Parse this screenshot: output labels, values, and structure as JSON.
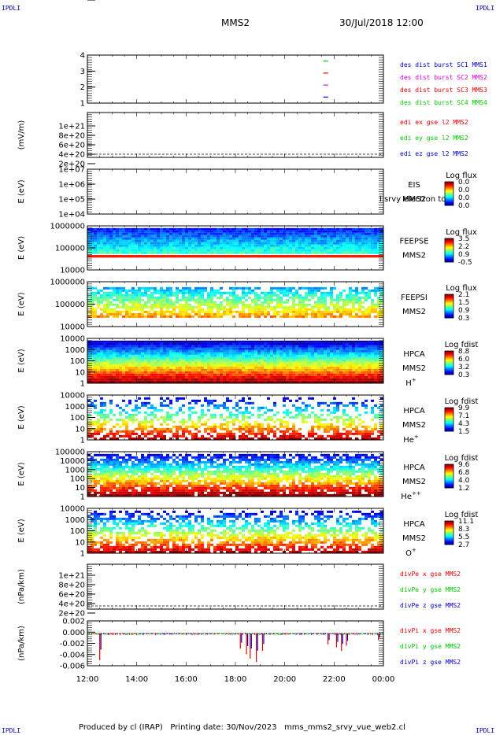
{
  "corners": {
    "tl": "IPDLI",
    "tr": "IPDLI",
    "bl": "IPDLI",
    "br": "IPDLI"
  },
  "header": {
    "spacecraft": "MMS2",
    "datetime": "30/Jul/2018 12:00"
  },
  "footer": {
    "produced_by": "Produced by cl (IRAP)",
    "printing_date": "Printing date: 30/Nov/2023",
    "filename": "mms_mms2_srvy_vue_web2.cl"
  },
  "colors": {
    "blue": "#0000c8",
    "magenta": "#e000e0",
    "red": "#e00000",
    "green": "#00c800"
  },
  "chart_data": {
    "type": "heatmap",
    "x_ticks": [
      "12:00",
      "14:00",
      "16:00",
      "18:00",
      "20:00",
      "22:00",
      "00:00"
    ],
    "panels": [
      {
        "type": "scatter",
        "y_ticks": [
          "4",
          "3",
          "2",
          "1"
        ],
        "ylim": [
          0.5,
          4.5
        ],
        "legend": [
          {
            "label": "des dist burst SC1 MMS1",
            "color": "#0000c8"
          },
          {
            "label": "des dist burst SC2 MMS2",
            "color": "#e000e0"
          },
          {
            "label": "des dist burst SC3 MMS3",
            "color": "#e00000"
          },
          {
            "label": "des dist burst SC4 MMS4",
            "color": "#00c800"
          }
        ],
        "marks": [
          {
            "x": 21.66,
            "y": 4,
            "color": "#00c800"
          },
          {
            "x": 21.66,
            "y": 3,
            "color": "#e00000"
          },
          {
            "x": 21.66,
            "y": 2,
            "color": "#e000e0"
          },
          {
            "x": 21.66,
            "y": 1,
            "color": "#0000c8"
          }
        ]
      },
      {
        "type": "line",
        "ylabel": "(mV/m)",
        "y_ticks": [
          "1e+21",
          "8e+20",
          "6e+20",
          "4e+20",
          "2e+20",
          "0"
        ],
        "legend": [
          {
            "label": "edi ex gse l2 MMS2",
            "color": "#e00000"
          },
          {
            "label": "edi ey gse l2 MMS2",
            "color": "#00c800"
          },
          {
            "label": "edi ez gse l2 MMS2",
            "color": "#0000c8"
          }
        ]
      },
      {
        "type": "heatmap",
        "ylabel": "E (eV)",
        "y_ticks": [
          "1e+07",
          "1e+06",
          "1e+05",
          "1e+04"
        ],
        "instrument": "EIS",
        "sc": "MMS2",
        "overlay_text": "l srvy electron to",
        "colorbar_title": "Log flux",
        "colorbar_ticks": [
          "0.0",
          "0.0",
          "0.0",
          "0.0"
        ]
      },
      {
        "type": "heatmap",
        "ylabel": "E (eV)",
        "y_ticks": [
          "1000000",
          "100000",
          "10000"
        ],
        "instrument": "FEEPSE",
        "sc": "MMS2",
        "colorbar_title": "Log flux",
        "colorbar_ticks": [
          "3.5",
          "2.2",
          "0.9",
          "-0.5"
        ]
      },
      {
        "type": "heatmap",
        "ylabel": "E (eV)",
        "y_ticks": [
          "1000000",
          "100000",
          "10000"
        ],
        "instrument": "FEEPSI",
        "sc": "MMS2",
        "colorbar_title": "Log flux",
        "colorbar_ticks": [
          "2.1",
          "1.5",
          "0.9",
          "0.3"
        ]
      },
      {
        "type": "heatmap",
        "ylabel": "E (eV)",
        "y_ticks": [
          "10000",
          "1000",
          "100",
          "10",
          "1"
        ],
        "instrument": "HPCA",
        "sc": "MMS2",
        "species": "H",
        "charge": "+",
        "colorbar_title": "Log fdist",
        "colorbar_ticks": [
          "8.8",
          "6.0",
          "3.2",
          "0.3"
        ]
      },
      {
        "type": "heatmap",
        "ylabel": "E (eV)",
        "y_ticks": [
          "10000",
          "1000",
          "100",
          "10",
          "1"
        ],
        "instrument": "HPCA",
        "sc": "MMS2",
        "species": "He",
        "charge": "+",
        "colorbar_title": "Log fdist",
        "colorbar_ticks": [
          "9.9",
          "7.1",
          "4.3",
          "1.5"
        ]
      },
      {
        "type": "heatmap",
        "ylabel": "E (eV)",
        "y_ticks": [
          "100000",
          "10000",
          "1000",
          "100",
          "10",
          "1"
        ],
        "instrument": "HPCA",
        "sc": "MMS2",
        "species": "He",
        "charge": "++",
        "colorbar_title": "Log fdist",
        "colorbar_ticks": [
          "9.6",
          "6.8",
          "4.0",
          "1.2"
        ]
      },
      {
        "type": "heatmap",
        "ylabel": "E (eV)",
        "y_ticks": [
          "10000",
          "1000",
          "100",
          "10",
          "1"
        ],
        "instrument": "HPCA",
        "sc": "MMS2",
        "species": "O",
        "charge": "+",
        "colorbar_title": "Log fdist",
        "colorbar_ticks": [
          "11.1",
          "8.3",
          "5.5",
          "2.7"
        ]
      },
      {
        "type": "line",
        "ylabel": "(nPa/km)",
        "y_ticks": [
          "1e+21",
          "8e+20",
          "6e+20",
          "4e+20",
          "2e+20",
          "0"
        ],
        "legend": [
          {
            "label": "divPe x gse MMS2",
            "color": "#e00000"
          },
          {
            "label": "divPe y gse MMS2",
            "color": "#00c800"
          },
          {
            "label": "divPe z gse MMS2",
            "color": "#0000c8"
          }
        ]
      },
      {
        "type": "line",
        "ylabel": "(nPa/km)",
        "y_ticks": [
          "0.002",
          "0.000",
          "-0.002",
          "-0.004",
          "-0.006"
        ],
        "ylim": [
          -0.0075,
          0.003
        ],
        "legend": [
          {
            "label": "divPi x gse MMS2",
            "color": "#e00000"
          },
          {
            "label": "divPi y gse MMS2",
            "color": "#00c800"
          },
          {
            "label": "divPi z gse MMS2",
            "color": "#0000c8"
          }
        ],
        "spikes": [
          {
            "x": 12.5,
            "y": -0.0062
          },
          {
            "x": 18.2,
            "y": -0.0035
          },
          {
            "x": 18.45,
            "y": -0.0048
          },
          {
            "x": 18.6,
            "y": -0.0058
          },
          {
            "x": 18.85,
            "y": -0.0066
          },
          {
            "x": 19.1,
            "y": -0.004
          },
          {
            "x": 21.75,
            "y": -0.0025
          },
          {
            "x": 22.1,
            "y": -0.0032
          },
          {
            "x": 22.3,
            "y": -0.004
          },
          {
            "x": 22.5,
            "y": -0.0028
          },
          {
            "x": 23.8,
            "y": -0.0015
          }
        ]
      }
    ]
  }
}
